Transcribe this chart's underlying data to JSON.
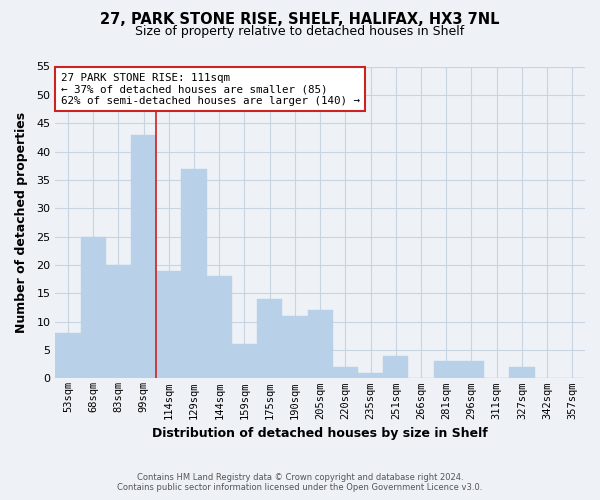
{
  "title_line1": "27, PARK STONE RISE, SHELF, HALIFAX, HX3 7NL",
  "title_line2": "Size of property relative to detached houses in Shelf",
  "xlabel": "Distribution of detached houses by size in Shelf",
  "ylabel": "Number of detached properties",
  "bin_labels": [
    "53sqm",
    "68sqm",
    "83sqm",
    "99sqm",
    "114sqm",
    "129sqm",
    "144sqm",
    "159sqm",
    "175sqm",
    "190sqm",
    "205sqm",
    "220sqm",
    "235sqm",
    "251sqm",
    "266sqm",
    "281sqm",
    "296sqm",
    "311sqm",
    "327sqm",
    "342sqm",
    "357sqm"
  ],
  "bar_values": [
    8,
    25,
    20,
    43,
    19,
    37,
    18,
    6,
    14,
    11,
    12,
    2,
    1,
    4,
    0,
    3,
    3,
    0,
    2,
    0,
    0
  ],
  "bar_color": "#b8d0e8",
  "bar_edgecolor": "#b8d0e8",
  "grid_color": "#c8d4e0",
  "background_color": "#eef2f6",
  "ylim": [
    0,
    55
  ],
  "yticks": [
    0,
    5,
    10,
    15,
    20,
    25,
    30,
    35,
    40,
    45,
    50,
    55
  ],
  "property_line_color": "#cc2222",
  "annotation_text_line1": "27 PARK STONE RISE: 111sqm",
  "annotation_text_line2": "← 37% of detached houses are smaller (85)",
  "annotation_text_line3": "62% of semi-detached houses are larger (140) →",
  "annotation_box_facecolor": "#ffffff",
  "annotation_box_edgecolor": "#cc2222",
  "footer_line1": "Contains HM Land Registry data © Crown copyright and database right 2024.",
  "footer_line2": "Contains public sector information licensed under the Open Government Licence v3.0."
}
